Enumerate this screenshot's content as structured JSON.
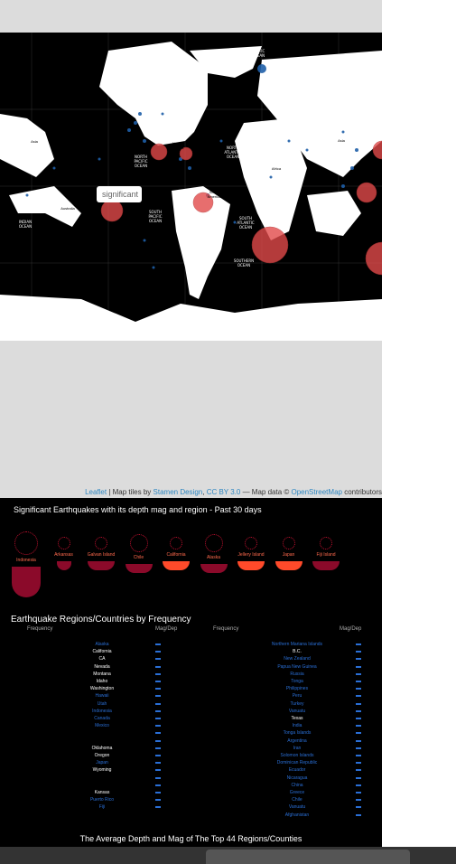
{
  "map": {
    "ocean_labels": [
      "ARCTIC OCEAN",
      "NORTH PACIFIC OCEAN",
      "NORTH ATLANTIC OCEAN",
      "SOUTH PACIFIC OCEAN",
      "SOUTH ATLANTIC OCEAN",
      "INDIAN OCEAN",
      "INDIAN OCEAN",
      "SOUTHERN OCEAN"
    ],
    "land_labels": [
      "Asia",
      "North America",
      "Africa",
      "South America",
      "Australia",
      "Asia",
      "Australia",
      "Antarctica"
    ],
    "tooltip": "significant"
  },
  "attribution": {
    "leaflet": "Leaflet",
    "sep1": " | Map tiles by ",
    "stamen": "Stamen Design",
    "sep2": ", ",
    "license": "CC BY 3.0",
    "sep3": " — Map data © ",
    "osm": "OpenStreetMap",
    "sep4": " contributors"
  },
  "panel": {
    "title1": "Significant Earthquakes with its depth mag and region - Past 30 days",
    "title2": "Earthquake Regions/Countries by Frequency",
    "title3": "The Average Depth and Mag of The Top 44 Regions/Counties",
    "col_frequency": "Frequency",
    "col_magdep": "Mag/Dep",
    "col_frequency2": "Frequency",
    "col_magdep2": "Mag/Dep",
    "regions": [
      "Indonesia",
      "Arkansas",
      "Galvan Island",
      "Chile",
      "California",
      "Alaska",
      "Jellery Island",
      "Japan",
      "Fiji Island"
    ],
    "left_rows": [
      "Alaska",
      "California",
      "CA",
      "Nevada",
      "Montana",
      "Idaho",
      "Washington",
      "Hawaii",
      "Utah",
      "Indonesia",
      "Canada",
      "Mexico",
      "",
      "",
      "Oklahoma",
      "Oregon",
      "Japan",
      "Wyoming",
      "",
      "",
      "Kansas",
      "Puerto Rico",
      "Fiji"
    ],
    "right_rows": [
      "Northern Mariana Islands",
      "B.C.",
      "New Zealand",
      "Papua New Guinea",
      "Russia",
      "Tonga",
      "Philippines",
      "Peru",
      "Turkey",
      "Vanuatu",
      "Texas",
      "India",
      "Tonga Islands",
      "Argentina",
      "Iran",
      "Solomon Islands",
      "Dominican Republic",
      "Ecuador",
      "Nicaragua",
      "China",
      "Greece",
      "Chile",
      "Vanuatu",
      "Afghanistan"
    ]
  },
  "colors": {
    "accent": "#c0102f",
    "link": "#2e86c1",
    "text_blue": "#2a6fd6"
  }
}
